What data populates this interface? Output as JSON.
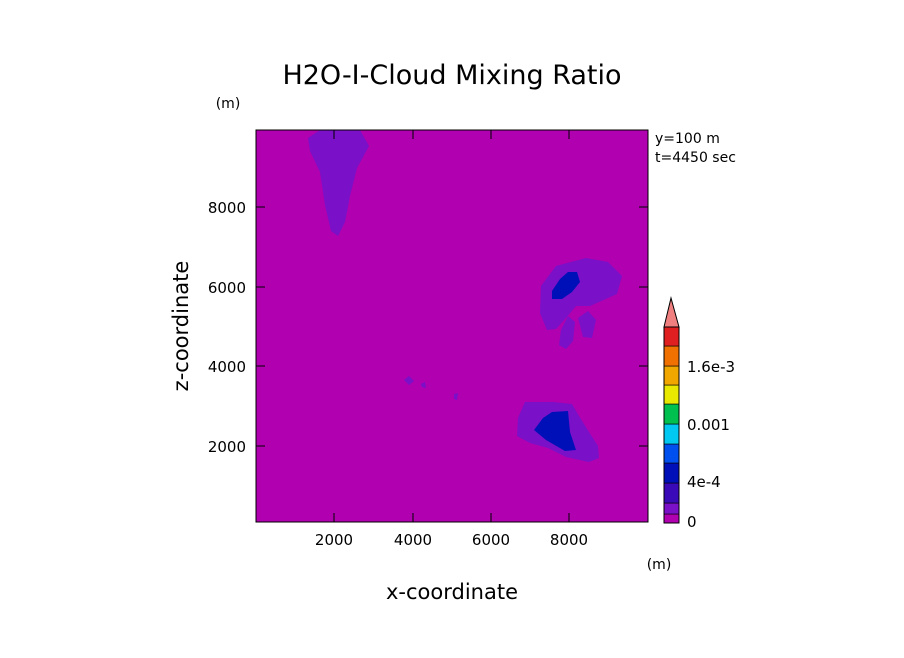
{
  "chart_data": {
    "type": "heatmap",
    "title": "H2O-I-Cloud Mixing Ratio",
    "xlabel": "x-coordinate",
    "ylabel": "z-coordinate",
    "x_unit": "(m)",
    "y_unit": "(m)",
    "annotations": [
      "y=100 m",
      "t=4450 sec"
    ],
    "xlim": [
      0,
      9800
    ],
    "ylim": [
      0,
      9800
    ],
    "xticks": [
      2000,
      4000,
      6000,
      8000
    ],
    "yticks": [
      2000,
      4000,
      6000,
      8000
    ],
    "xtick_labels": [
      "2000",
      "4000",
      "6000",
      "8000"
    ],
    "ytick_labels": [
      "2000",
      "4000",
      "6000",
      "8000"
    ],
    "colorbar": {
      "levels": [
        "0",
        "4e-4",
        "0.001",
        "1.6e-3"
      ],
      "colors": [
        "#b000b0",
        "#7a10c8",
        "#3a0ab8",
        "#0010b8",
        "#0050f0",
        "#00c8f0",
        "#00c050",
        "#e8e800",
        "#f0a800",
        "#f07000",
        "#e02020"
      ],
      "extend_color": "#f08080"
    },
    "background_color": "#b000b0",
    "grid": false
  }
}
